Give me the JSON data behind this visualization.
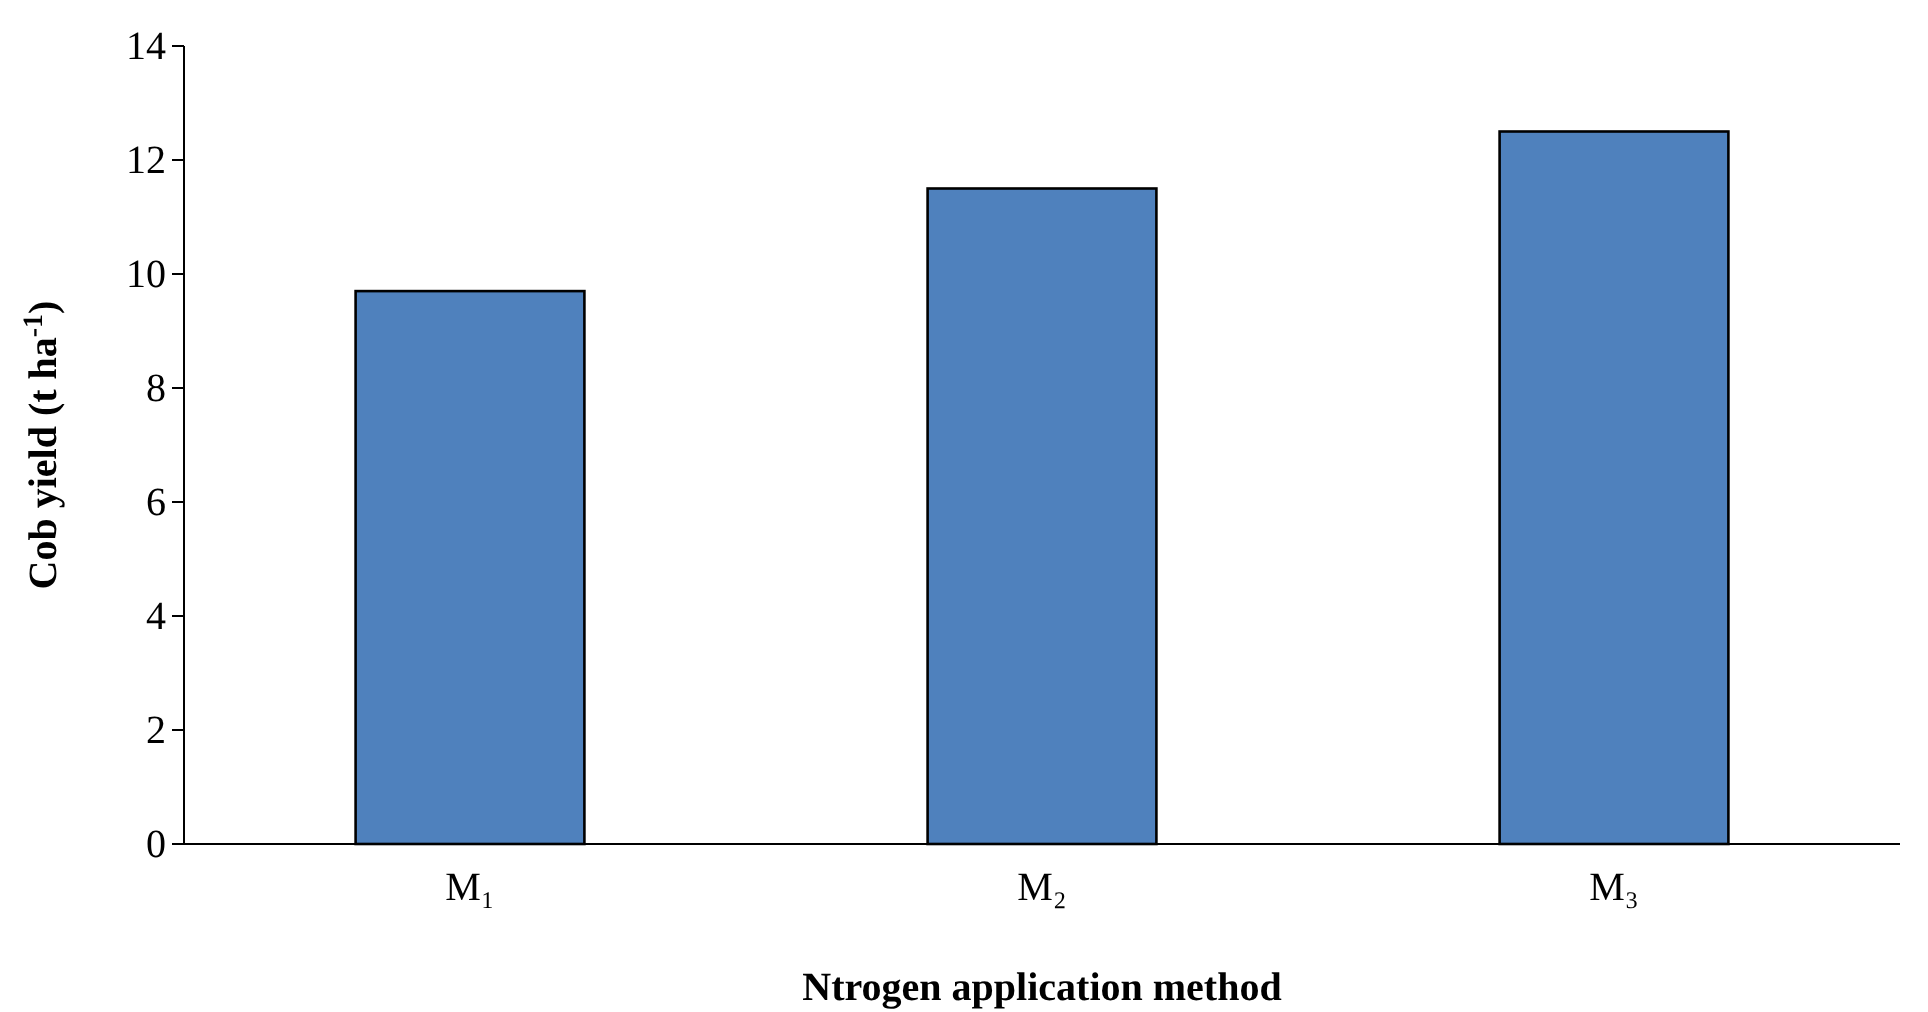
{
  "chart_data": {
    "type": "bar",
    "xlabel": "Ntrogen application method",
    "ylabel": "Cob yield (t ha$^{-1}$)",
    "categories": [
      "M₁",
      "M₂",
      "M₃"
    ],
    "values": [
      9.7,
      11.5,
      12.5
    ],
    "color": "#4f81bd",
    "ylim": [
      0,
      14
    ],
    "yticks": [
      0,
      2,
      4,
      6,
      8,
      10,
      12,
      14
    ],
    "grid": false
  }
}
